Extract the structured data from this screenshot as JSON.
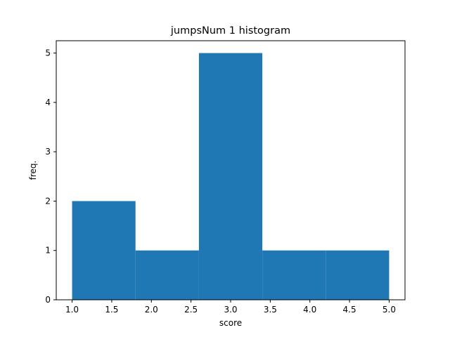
{
  "chart_data": {
    "type": "bar",
    "title": "jumpsNum 1 histogram",
    "xlabel": "score",
    "ylabel": "freq.",
    "bins": [
      {
        "start": 1.0,
        "end": 1.8,
        "value": 2
      },
      {
        "start": 1.8,
        "end": 2.6,
        "value": 1
      },
      {
        "start": 2.6,
        "end": 3.4,
        "value": 5
      },
      {
        "start": 3.4,
        "end": 4.2,
        "value": 1
      },
      {
        "start": 4.2,
        "end": 5.0,
        "value": 1
      }
    ],
    "xlim": [
      0.8,
      5.2
    ],
    "ylim": [
      0,
      5.25
    ],
    "xticks": [
      "1.0",
      "1.5",
      "2.0",
      "2.5",
      "3.0",
      "3.5",
      "4.0",
      "4.5",
      "5.0"
    ],
    "yticks": [
      "0",
      "1",
      "2",
      "3",
      "4",
      "5"
    ],
    "bar_color": "#1f77b4",
    "grid": false,
    "legend": "none"
  }
}
